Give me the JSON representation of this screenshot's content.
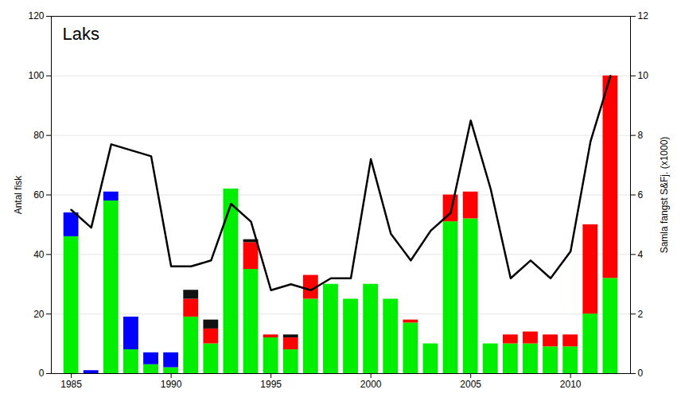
{
  "chart_data": {
    "type": "bar",
    "title": "Laks",
    "stacked": true,
    "x": [
      1985,
      1986,
      1987,
      1988,
      1989,
      1990,
      1991,
      1992,
      1993,
      1994,
      1995,
      1996,
      1997,
      1998,
      1999,
      2000,
      2001,
      2002,
      2003,
      2004,
      2005,
      2006,
      2007,
      2008,
      2009,
      2010,
      2011,
      2012
    ],
    "series": [
      {
        "color": "#00ee00",
        "values": [
          46,
          0,
          58,
          8,
          3,
          2,
          19,
          10,
          62,
          35,
          12,
          8,
          25,
          30,
          25,
          30,
          25,
          17,
          10,
          51,
          52,
          10,
          10,
          10,
          9,
          9,
          20,
          32
        ]
      },
      {
        "color": "#ff0000",
        "values": [
          0,
          0,
          0,
          0,
          0,
          0,
          6,
          5,
          0,
          9,
          1,
          4,
          8,
          0,
          0,
          0,
          0,
          1,
          0,
          9,
          9,
          0,
          3,
          4,
          4,
          4,
          30,
          68
        ]
      },
      {
        "color": "#111111",
        "values": [
          0,
          0,
          0,
          0,
          0,
          0,
          3,
          3,
          0,
          1,
          0,
          1,
          0,
          0,
          0,
          0,
          0,
          0,
          0,
          0,
          0,
          0,
          0,
          0,
          0,
          0,
          0,
          0
        ]
      },
      {
        "color": "#0000ff",
        "values": [
          8,
          1,
          3,
          11,
          4,
          5,
          0,
          0,
          0,
          0,
          0,
          0,
          0,
          0,
          0,
          0,
          0,
          0,
          0,
          0,
          0,
          0,
          0,
          0,
          0,
          0,
          0,
          0
        ]
      },
      {
        "type": "line",
        "axis": "y2",
        "color": "#000000",
        "values": [
          5.5,
          4.9,
          7.7,
          7.5,
          7.3,
          3.6,
          3.6,
          3.8,
          5.7,
          5.1,
          2.8,
          3.0,
          2.8,
          3.2,
          3.2,
          7.2,
          4.7,
          3.8,
          4.8,
          5.4,
          8.5,
          6.2,
          3.2,
          3.8,
          3.2,
          4.1,
          7.8,
          10.0
        ]
      }
    ],
    "ylabel": "Antal fisk",
    "y2label": "Samla fangst S&Fj. (x1000)",
    "xlim": [
      1984.0,
      2013.0
    ],
    "ylim": [
      0,
      120
    ],
    "y2lim": [
      0,
      12
    ],
    "xticks": [
      1985,
      1990,
      1995,
      2000,
      2005,
      2010
    ],
    "yticks": [
      0,
      20,
      40,
      60,
      80,
      100,
      120
    ],
    "y2ticks": [
      0,
      2,
      4,
      6,
      8,
      10,
      12
    ],
    "grid": true
  }
}
